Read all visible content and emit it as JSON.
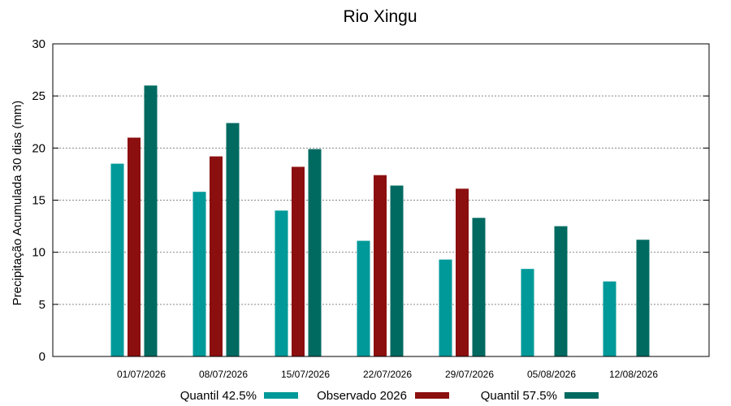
{
  "chart_data": {
    "type": "bar",
    "title": "Rio Xingu",
    "xlabel": "",
    "ylabel": "Precipitação Acumulada 30 dias (mm)",
    "ylim": [
      0,
      30
    ],
    "yticks": [
      0,
      5,
      10,
      15,
      20,
      25,
      30
    ],
    "grid": true,
    "legend_position": "bottom",
    "categories": [
      "01/07/2026",
      "08/07/2026",
      "15/07/2026",
      "22/07/2026",
      "29/07/2026",
      "05/08/2026",
      "12/08/2026"
    ],
    "series": [
      {
        "name": "Quantil 42.5%",
        "color": "#009999",
        "values": [
          18.5,
          15.8,
          14.0,
          11.1,
          9.3,
          8.4,
          7.2
        ]
      },
      {
        "name": "Observado 2026",
        "color": "#8b0f0f",
        "values": [
          21.0,
          19.2,
          18.2,
          17.4,
          16.1,
          null,
          null
        ]
      },
      {
        "name": "Quantil 57.5%",
        "color": "#006a61",
        "values": [
          26.0,
          22.4,
          19.9,
          16.4,
          13.3,
          12.5,
          11.2
        ]
      }
    ]
  }
}
